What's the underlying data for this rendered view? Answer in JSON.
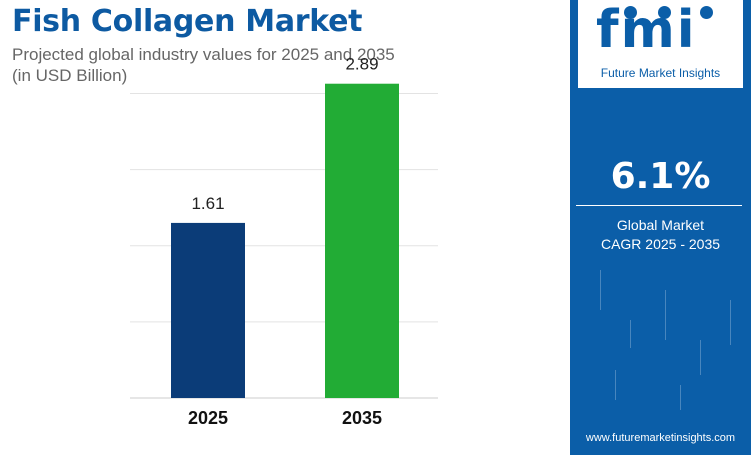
{
  "title": "Fish Collagen Market",
  "subtitle_line1": "Projected global industry values for 2025 and 2035",
  "subtitle_line2": "(in USD Billion)",
  "logo": {
    "text": "fmi",
    "tagline": "Future Market Insights"
  },
  "cagr": {
    "value": "6.1%",
    "label_line1": "Global Market",
    "label_line2": "CAGR 2025 - 2035"
  },
  "website": "www.futuremarketinsights.com",
  "colors": {
    "bar_2025": "#0b3c78",
    "bar_2035": "#22ac35",
    "brand_blue": "#0b5ea8",
    "title_blue": "#0d5aa2"
  },
  "chart_data": {
    "type": "bar",
    "categories": [
      "2025",
      "2035"
    ],
    "values": [
      1.61,
      2.89
    ],
    "value_labels": [
      "1.61",
      "2.89"
    ],
    "title": "",
    "xlabel": "",
    "ylabel": "",
    "ylim": [
      0,
      3.2
    ],
    "grid": true,
    "legend": "none"
  }
}
